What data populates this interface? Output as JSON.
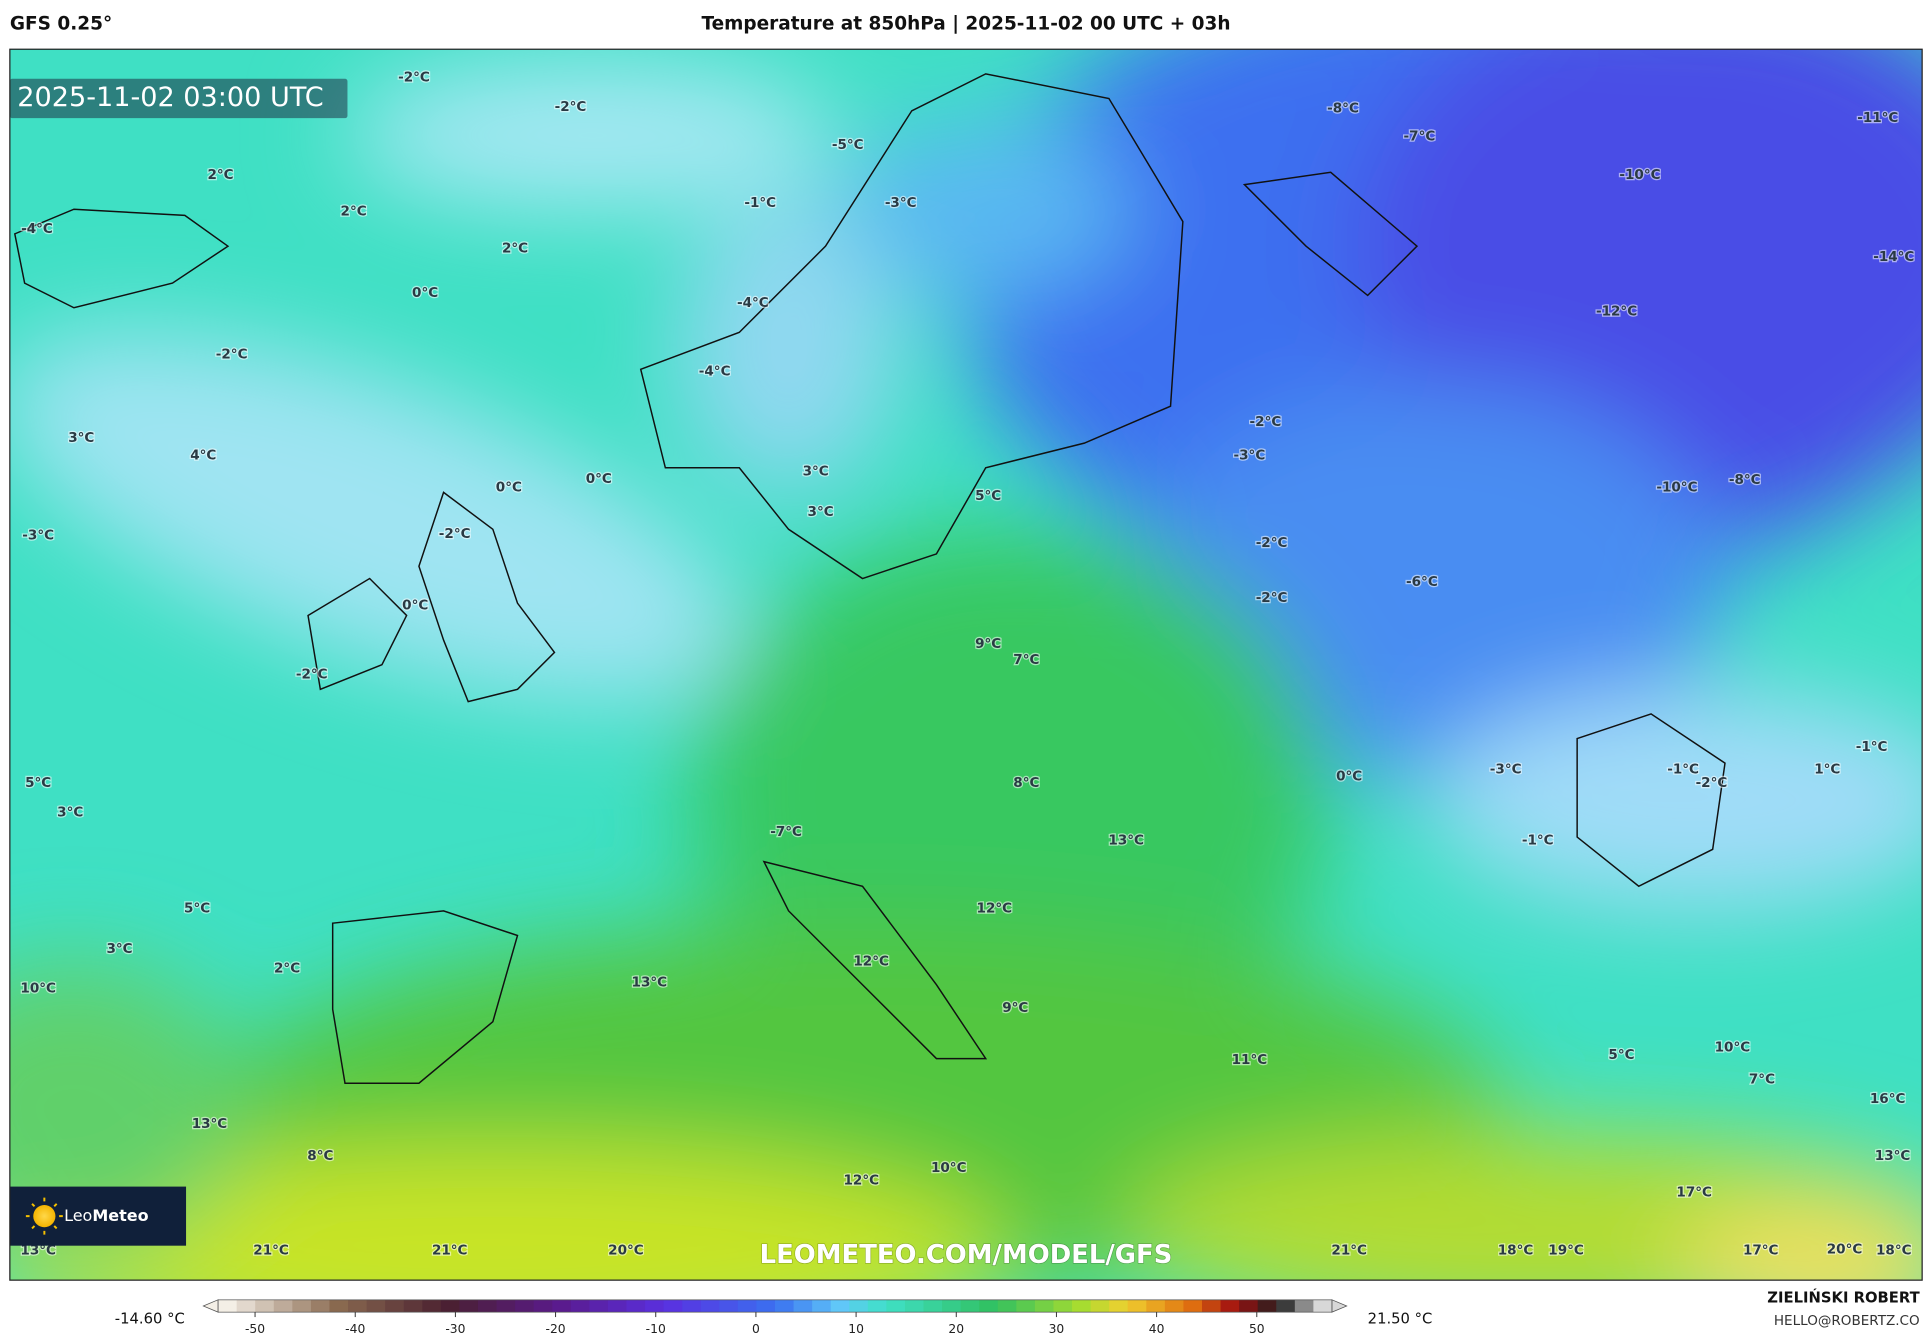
{
  "header": {
    "model": "GFS 0.25°",
    "title": "Temperature at 850hPa | 2025-11-02 00 UTC + 03h"
  },
  "map": {
    "timestamp": "2025-11-02 03:00 UTC",
    "labels": [
      "-2°C",
      "-2°C",
      "2°C",
      "2°C",
      "2°C",
      "-1°C",
      "0°C",
      "-2°C",
      "3°C",
      "4°C",
      "0°C",
      "0°C",
      "-3°C",
      "-2°C",
      "0°C",
      "-2°C",
      "-5°C",
      "-3°C",
      "-4°C",
      "-4°C",
      "3°C",
      "3°C",
      "5°C",
      "-8°C",
      "-7°C",
      "-11°C",
      "-10°C",
      "-14°C",
      "-12°C",
      "-2°C",
      "-3°C",
      "-10°C",
      "-8°C",
      "-2°C",
      "-6°C",
      "-2°C",
      "9°C",
      "7°C",
      "0°C",
      "-3°C",
      "-1°C",
      "-2°C",
      "1°C",
      "-1°C",
      "-1°C",
      "5°C",
      "3°C",
      "8°C",
      "-7°C",
      "13°C",
      "5°C",
      "12°C",
      "3°C",
      "2°C",
      "12°C",
      "10°C",
      "13°C",
      "9°C",
      "11°C",
      "5°C",
      "10°C",
      "7°C",
      "16°C",
      "13°C",
      "8°C",
      "10°C",
      "12°C",
      "13°C",
      "17°C",
      "13°C",
      "21°C",
      "21°C",
      "20°C",
      "21°C",
      "18°C",
      "19°C",
      "17°C",
      "20°C",
      "18°C",
      "-4°C"
    ],
    "watermark": "LEOMETEO.COM/MODEL/GFS",
    "logo": {
      "part1": "Leo",
      "part2": "Meteo"
    }
  },
  "colorbar": {
    "ticks": [
      -50,
      -40,
      -30,
      -20,
      -10,
      0,
      10,
      20,
      30,
      40,
      50
    ],
    "min_label": "-14.60 °C",
    "max_label": "21.50 °C"
  },
  "footer": {
    "author": "ZIELIŃSKI ROBERT",
    "contact": "HELLO@ROBERTZ.CO"
  }
}
